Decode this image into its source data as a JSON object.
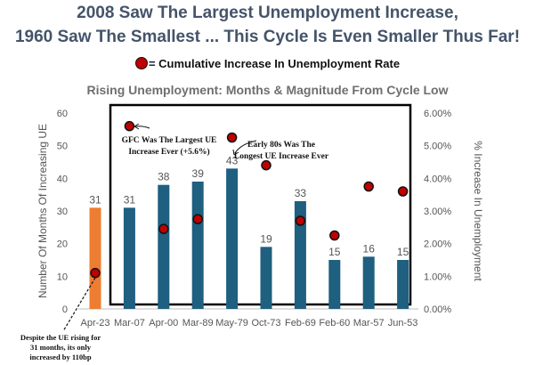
{
  "header": {
    "title_line1": "2008 Saw The Largest Unemployment Increase,",
    "title_line2": "1960 Saw The Smallest ... This Cycle Is Even Smaller Thus Far!",
    "legend_label": "= Cumulative Increase In Unemployment Rate"
  },
  "colors": {
    "current_bar": "#ed7d31",
    "history_bar": "#1f5f7f",
    "dot": "#c00000"
  },
  "chart_data": {
    "type": "bar",
    "title": "Rising Unemployment: Months & Magnitude From Cycle Low",
    "xlabel": "",
    "ylabel": "Number Of Months Of Increasing UE",
    "y2label": "% Increase In Unemployment",
    "ylim": [
      0,
      60
    ],
    "yticks": [
      "0",
      "10",
      "20",
      "30",
      "40",
      "50",
      "60"
    ],
    "y2lim": [
      0,
      6
    ],
    "y2ticks": [
      "0.00%",
      "1.00%",
      "2.00%",
      "3.00%",
      "4.00%",
      "5.00%",
      "6.00%"
    ],
    "categories": [
      "Apr-23",
      "Mar-07",
      "Apr-00",
      "Mar-89",
      "May-79",
      "Oct-73",
      "Feb-69",
      "Feb-60",
      "Mar-57",
      "Jun-53"
    ],
    "series": [
      {
        "name": "Number Of Months Of Increasing UE",
        "axis": "left",
        "values": [
          31,
          31,
          38,
          39,
          43,
          19,
          33,
          15,
          16,
          15
        ],
        "labels": [
          "31",
          "31",
          "38",
          "39",
          "43",
          "19",
          "33",
          "15",
          "16",
          "15"
        ]
      },
      {
        "name": "Cumulative Increase In Unemployment Rate",
        "axis": "right",
        "type": "scatter",
        "values": [
          1.1,
          5.6,
          2.45,
          2.75,
          5.25,
          4.4,
          2.7,
          2.25,
          3.75,
          3.6
        ]
      }
    ],
    "annotations": [
      {
        "text_lines": [
          "GFC Was The Largest UE",
          "Increase Ever (+5.6%)"
        ]
      },
      {
        "text_lines": [
          "Early 80s Was The",
          "Longest UE Increase Ever"
        ]
      },
      {
        "text_lines": [
          "Despite the UE rising for",
          "31 months, its only",
          "increased by 110bp"
        ]
      }
    ]
  }
}
